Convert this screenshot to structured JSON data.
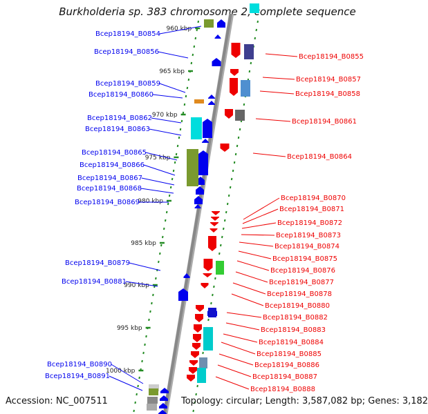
{
  "title": "Burkholderia sp. 383 chromosome 2, complete sequence",
  "accession": "Accession: NC_007511",
  "topology": "Topology: circular; Length: 3,587,082 bp; Genes: 3,182",
  "kbp_ticks": [
    "960 kbp",
    "965 kbp",
    "970 kbp",
    "975 kbp",
    "980 kbp",
    "985 kbp",
    "990 kbp",
    "995 kbp",
    "1000 kbp"
  ],
  "genes_left": [
    "Bcep18194_B0854",
    "Bcep18194_B0856",
    "Bcep18194_B0859",
    "Bcep18194_B0860",
    "Bcep18194_B0862",
    "Bcep18194_B0863",
    "Bcep18194_B0865",
    "Bcep18194_B0866",
    "Bcep18194_B0867",
    "Bcep18194_B0868",
    "Bcep18194_B0869",
    "Bcep18194_B0879",
    "Bcep18194_B0881",
    "Bcep18194_B0890",
    "Bcep18194_B0891"
  ],
  "genes_right": [
    "Bcep18194_B0855",
    "Bcep18194_B0857",
    "Bcep18194_B0858",
    "Bcep18194_B0861",
    "Bcep18194_B0864",
    "Bcep18194_B0870",
    "Bcep18194_B0871",
    "Bcep18194_B0872",
    "Bcep18194_B0873",
    "Bcep18194_B0874",
    "Bcep18194_B0875",
    "Bcep18194_B0876",
    "Bcep18194_B0877",
    "Bcep18194_B0878",
    "Bcep18194_B0880",
    "Bcep18194_B0882",
    "Bcep18194_B0883",
    "Bcep18194_B0884",
    "Bcep18194_B0885",
    "Bcep18194_B0886",
    "Bcep18194_B0887",
    "Bcep18194_B0888"
  ],
  "colors": {
    "forward_strand": "#0000ee",
    "reverse_strand": "#ee0000",
    "backbone": "#888888",
    "tick": "#228b22"
  }
}
